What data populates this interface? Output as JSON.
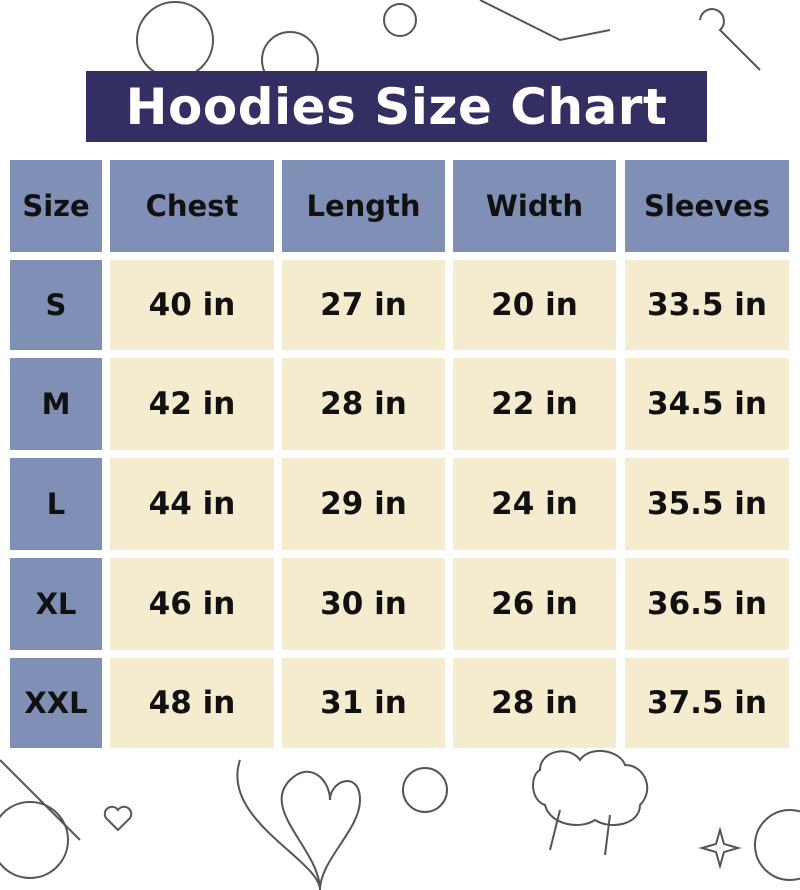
{
  "title": "Hoodies Size Chart",
  "colors": {
    "title_bg": "#332f63",
    "header_bg": "#7f8fb5",
    "cell_bg": "#f5ecd0"
  },
  "chart_data": {
    "type": "table",
    "title": "Hoodies Size Chart",
    "columns": [
      "Size",
      "Chest",
      "Length",
      "Width",
      "Sleeves"
    ],
    "rows": [
      [
        "S",
        "40 in",
        "27 in",
        "20 in",
        "33.5 in"
      ],
      [
        "M",
        "42 in",
        "28 in",
        "22 in",
        "34.5 in"
      ],
      [
        "L",
        "44 in",
        "29 in",
        "24 in",
        "35.5 in"
      ],
      [
        "XL",
        "46 in",
        "30 in",
        "26 in",
        "36.5 in"
      ],
      [
        "XXL",
        "48 in",
        "31 in",
        "28 in",
        "37.5 in"
      ]
    ]
  }
}
